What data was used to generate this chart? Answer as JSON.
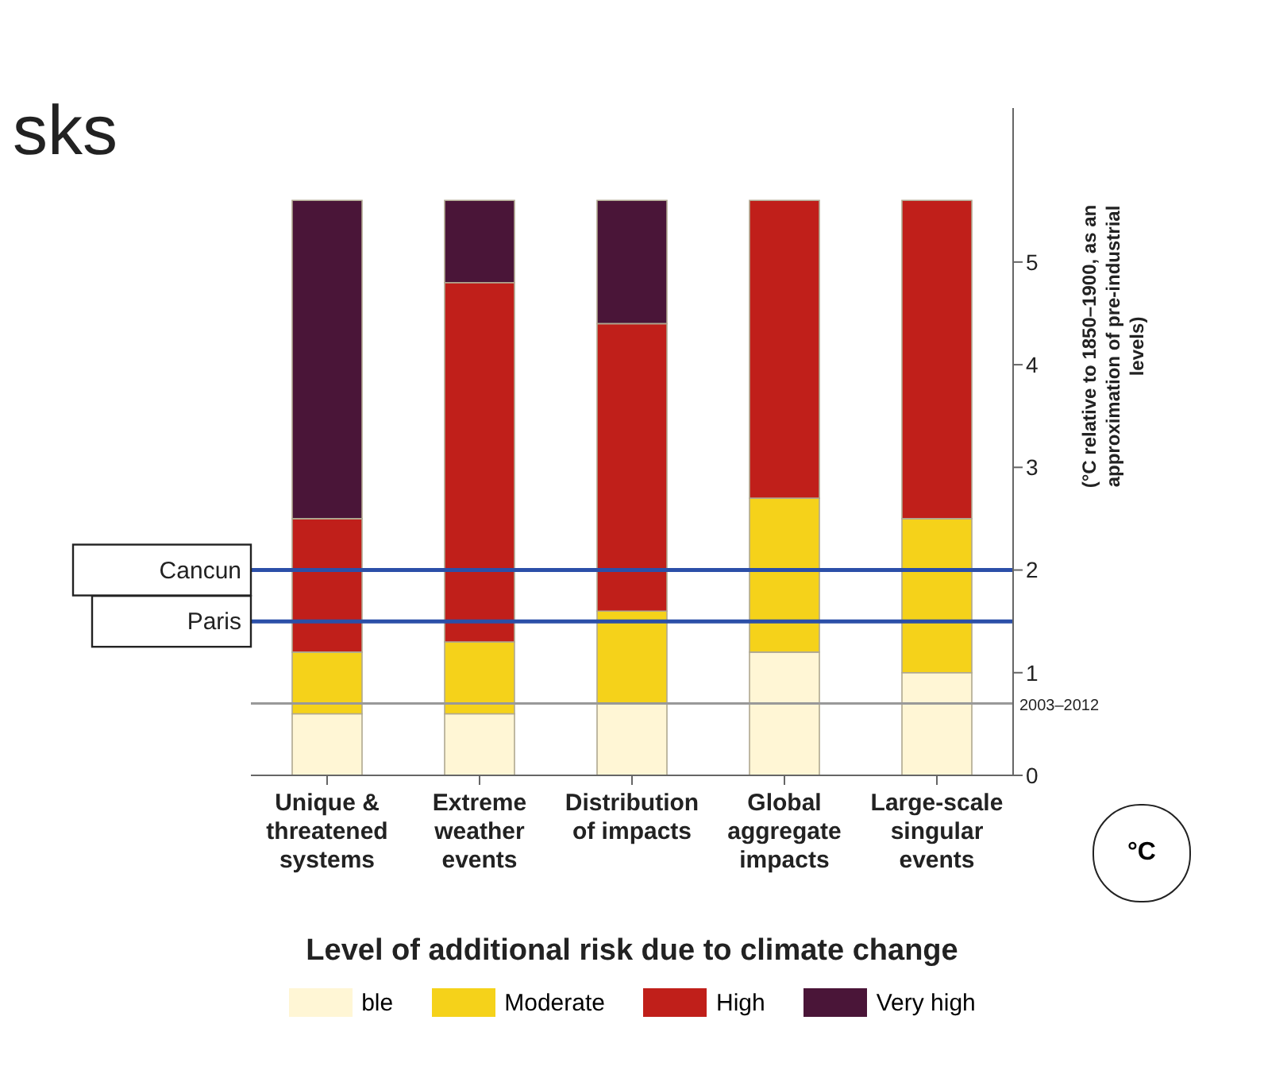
{
  "chart_data": {
    "type": "bar",
    "stacked": true,
    "title": "sks",
    "ylabel": "(°C relative to 1850–1900, as an approximation of pre-industrial levels)",
    "legend_title": "Level of additional risk due to climate change",
    "annotations": [
      "°C"
    ],
    "categories": [
      "Unique & threatened systems",
      "Extreme weather events",
      "Distribution of impacts",
      "Global aggregate impacts",
      "Large-scale singular events"
    ],
    "series": [
      {
        "name": "ble",
        "color": "#fff6d5",
        "values": [
          0.6,
          0.6,
          0.7,
          1.2,
          1.0
        ]
      },
      {
        "name": "Moderate",
        "color": "#f5d21a",
        "values": [
          0.6,
          0.7,
          0.9,
          1.5,
          1.5
        ]
      },
      {
        "name": "High",
        "color": "#c01f1a",
        "values": [
          1.3,
          3.5,
          2.8,
          2.9,
          3.1
        ]
      },
      {
        "name": "Very high",
        "color": "#4a1538",
        "values": [
          3.1,
          0.8,
          1.2,
          null,
          null
        ]
      }
    ],
    "ylim": [
      0,
      6.5
    ],
    "yticks": [
      0,
      1,
      2,
      3,
      4,
      5
    ],
    "legend": "bottom",
    "ref_lines": [
      {
        "axis": "y",
        "value": 2,
        "label": "Cancun",
        "color": "#2b4fa8"
      },
      {
        "axis": "y",
        "value": 1.5,
        "label": "Paris",
        "color": "#2b4fa8"
      },
      {
        "axis": "y",
        "value": 0.7,
        "label": "2003–2012",
        "color": "#999999"
      }
    ]
  }
}
